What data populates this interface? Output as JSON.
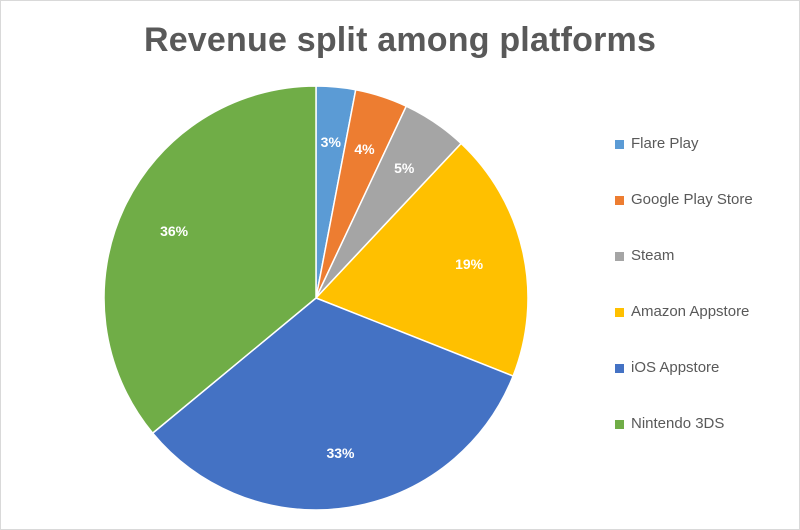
{
  "chart_data": {
    "type": "pie",
    "title": "Revenue split among platforms",
    "legend_position": "right",
    "unit": "%",
    "slices": [
      {
        "name": "Flare Play",
        "value": 3,
        "label": "3%",
        "color": "#5b9bd5"
      },
      {
        "name": "Google Play Store",
        "value": 4,
        "label": "4%",
        "color": "#ed7d31"
      },
      {
        "name": "Steam",
        "value": 5,
        "label": "5%",
        "color": "#a5a5a5"
      },
      {
        "name": "Amazon Appstore",
        "value": 19,
        "label": "19%",
        "color": "#ffc000"
      },
      {
        "name": "iOS Appstore",
        "value": 33,
        "label": "33%",
        "color": "#4472c4"
      },
      {
        "name": "Nintendo 3DS",
        "value": 36,
        "label": "36%",
        "color": "#70ad47"
      }
    ]
  }
}
